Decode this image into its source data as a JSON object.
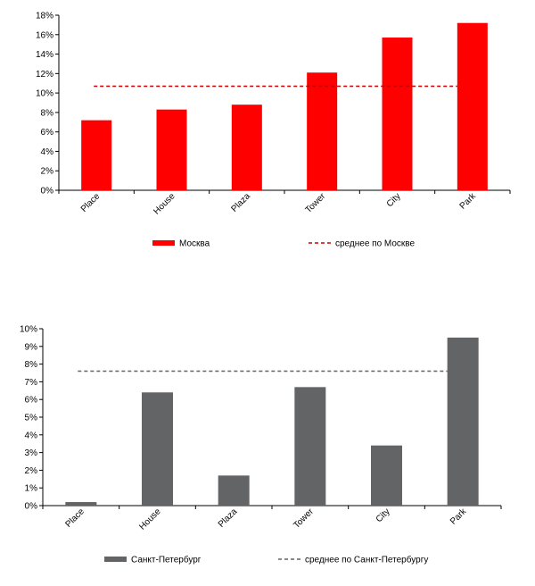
{
  "chart_data": [
    {
      "type": "bar",
      "categories": [
        "Place",
        "House",
        "Plaza",
        "Tower",
        "City",
        "Park"
      ],
      "series": [
        {
          "name": "Москва",
          "values": [
            7.2,
            8.3,
            8.8,
            12.1,
            15.7,
            17.2
          ],
          "color": "#ff0000"
        }
      ],
      "average": {
        "name": "среднее по Москве",
        "value": 10.7,
        "color": "#cc0000",
        "style": "dashed"
      },
      "ylim": [
        0,
        18
      ],
      "yticks": [
        0,
        2,
        4,
        6,
        8,
        10,
        12,
        14,
        16,
        18
      ],
      "ytick_labels": [
        "0%",
        "2%",
        "4%",
        "6%",
        "8%",
        "10%",
        "12%",
        "14%",
        "16%",
        "18%"
      ],
      "grid": false,
      "legend_position": "bottom"
    },
    {
      "type": "bar",
      "categories": [
        "Place",
        "House",
        "Plaza",
        "Tower",
        "City",
        "Park"
      ],
      "series": [
        {
          "name": "Санкт-Петербург",
          "values": [
            0.2,
            6.4,
            1.7,
            6.7,
            3.4,
            9.5
          ],
          "color": "#636466"
        }
      ],
      "average": {
        "name": "среднее по Санкт-Петербургу",
        "value": 7.6,
        "color": "#636466",
        "style": "dashed"
      },
      "ylim": [
        0,
        10
      ],
      "yticks": [
        0,
        1,
        2,
        3,
        4,
        5,
        6,
        7,
        8,
        9,
        10
      ],
      "ytick_labels": [
        "0%",
        "1%",
        "2%",
        "3%",
        "4%",
        "5%",
        "6%",
        "7%",
        "8%",
        "9%",
        "10%"
      ],
      "grid": false,
      "legend_position": "bottom"
    }
  ]
}
